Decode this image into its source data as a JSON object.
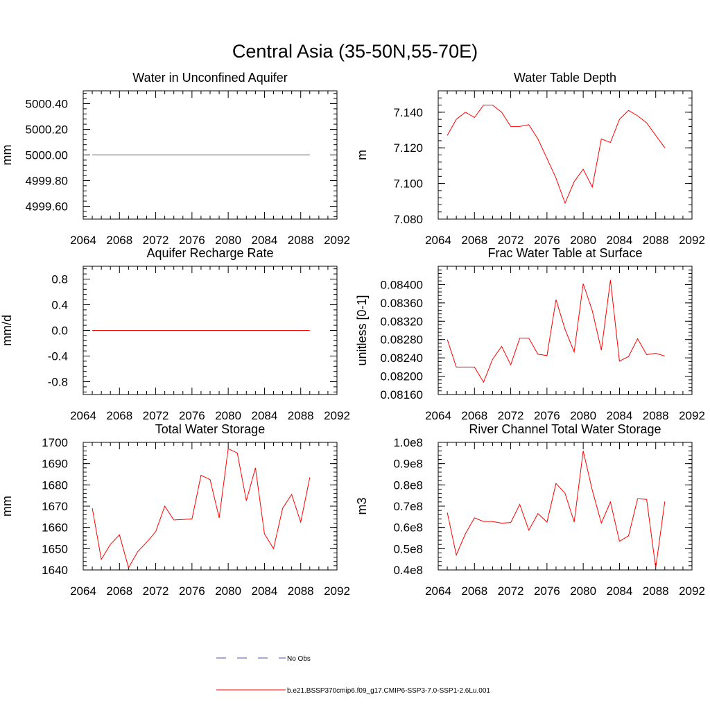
{
  "figure": {
    "title": "Central Asia (35-50N,55-70E)",
    "line_color": "#ff0000",
    "obs_color": "#5050b0"
  },
  "legend": {
    "obs_label": "No Obs",
    "model_label": "b.e21.BSSP370cmip6.f09_g17.CMIP6-SSP3-7.0-SSP1-2.6Lu.001"
  },
  "chart_data": [
    {
      "type": "line",
      "title": "Water in Unconfined Aquifer",
      "xlabel": "",
      "ylabel": "mm",
      "xlim": [
        2064,
        2092
      ],
      "ylim": [
        4999.5,
        5000.5
      ],
      "xticks": [
        2064,
        2068,
        2072,
        2076,
        2080,
        2084,
        2088,
        2092
      ],
      "yticks": [
        4999.6,
        4999.8,
        5000.0,
        5000.2,
        5000.4
      ],
      "ytick_labels": [
        "4999.60",
        "4999.80",
        "5000.00",
        "5000.20",
        "5000.40"
      ],
      "x": [
        2065,
        2066,
        2067,
        2068,
        2069,
        2070,
        2071,
        2072,
        2073,
        2074,
        2075,
        2076,
        2077,
        2078,
        2079,
        2080,
        2081,
        2082,
        2083,
        2084,
        2085,
        2086,
        2087,
        2088,
        2089
      ],
      "series": [
        {
          "values": [
            5000,
            5000,
            5000,
            5000,
            5000,
            5000,
            5000,
            5000,
            5000,
            5000,
            5000,
            5000,
            5000,
            5000,
            5000,
            5000,
            5000,
            5000,
            5000,
            5000,
            5000,
            5000,
            5000,
            5000,
            5000
          ]
        }
      ]
    },
    {
      "type": "line",
      "title": "Water Table Depth",
      "xlabel": "",
      "ylabel": "m",
      "xlim": [
        2064,
        2092
      ],
      "ylim": [
        7.08,
        7.152
      ],
      "xticks": [
        2064,
        2068,
        2072,
        2076,
        2080,
        2084,
        2088,
        2092
      ],
      "yticks": [
        7.08,
        7.1,
        7.12,
        7.14
      ],
      "ytick_labels": [
        "7.080",
        "7.100",
        "7.120",
        "7.140"
      ],
      "x": [
        2065,
        2066,
        2067,
        2068,
        2069,
        2070,
        2071,
        2072,
        2073,
        2074,
        2075,
        2076,
        2077,
        2078,
        2079,
        2080,
        2081,
        2082,
        2083,
        2084,
        2085,
        2086,
        2087,
        2088,
        2089
      ],
      "series": [
        {
          "values": [
            7.127,
            7.136,
            7.14,
            7.137,
            7.144,
            7.144,
            7.14,
            7.132,
            7.132,
            7.133,
            7.125,
            7.114,
            7.103,
            7.089,
            7.101,
            7.108,
            7.098,
            7.125,
            7.123,
            7.136,
            7.141,
            7.138,
            7.134,
            7.127,
            7.12
          ]
        }
      ]
    },
    {
      "type": "line",
      "title": "Aquifer Recharge Rate",
      "xlabel": "",
      "ylabel": "mm/d",
      "xlim": [
        2064,
        2092
      ],
      "ylim": [
        -1.0,
        1.0
      ],
      "xticks": [
        2064,
        2068,
        2072,
        2076,
        2080,
        2084,
        2088,
        2092
      ],
      "yticks": [
        -0.8,
        -0.4,
        0.0,
        0.4,
        0.8
      ],
      "ytick_labels": [
        "-0.8",
        "-0.4",
        "0.0",
        "0.4",
        "0.8"
      ],
      "x": [
        2065,
        2066,
        2067,
        2068,
        2069,
        2070,
        2071,
        2072,
        2073,
        2074,
        2075,
        2076,
        2077,
        2078,
        2079,
        2080,
        2081,
        2082,
        2083,
        2084,
        2085,
        2086,
        2087,
        2088,
        2089
      ],
      "series": [
        {
          "values": [
            0,
            0,
            0,
            0,
            0,
            0,
            0,
            0,
            0,
            0,
            0,
            0,
            0,
            0,
            0,
            0,
            0,
            0,
            0,
            0,
            0,
            0,
            0,
            0,
            0
          ]
        }
      ]
    },
    {
      "type": "line",
      "title": "Frac Water Table at Surface",
      "xlabel": "",
      "ylabel": "unitless [0-1]",
      "xlim": [
        2064,
        2092
      ],
      "ylim": [
        0.0816,
        0.0844
      ],
      "xticks": [
        2064,
        2068,
        2072,
        2076,
        2080,
        2084,
        2088,
        2092
      ],
      "yticks": [
        0.0816,
        0.082,
        0.0824,
        0.0828,
        0.0832,
        0.0836,
        0.084
      ],
      "ytick_labels": [
        "0.08160",
        "0.08200",
        "0.08240",
        "0.08280",
        "0.08320",
        "0.08360",
        "0.08400"
      ],
      "x": [
        2065,
        2066,
        2067,
        2068,
        2069,
        2070,
        2071,
        2072,
        2073,
        2074,
        2075,
        2076,
        2077,
        2078,
        2079,
        2080,
        2081,
        2082,
        2083,
        2084,
        2085,
        2086,
        2087,
        2088,
        2089
      ],
      "series": [
        {
          "values": [
            0.0828,
            0.0822,
            0.0822,
            0.0822,
            0.08187,
            0.08237,
            0.08265,
            0.08225,
            0.08283,
            0.08283,
            0.08248,
            0.08245,
            0.08367,
            0.08302,
            0.08253,
            0.08402,
            0.08343,
            0.08257,
            0.0841,
            0.08233,
            0.08243,
            0.08282,
            0.08247,
            0.0825,
            0.08244
          ]
        }
      ]
    },
    {
      "type": "line",
      "title": "Total Water Storage",
      "xlabel": "",
      "ylabel": "mm",
      "xlim": [
        2064,
        2092
      ],
      "ylim": [
        1640,
        1700
      ],
      "xticks": [
        2064,
        2068,
        2072,
        2076,
        2080,
        2084,
        2088,
        2092
      ],
      "yticks": [
        1640,
        1650,
        1660,
        1670,
        1680,
        1690,
        1700
      ],
      "ytick_labels": [
        "1640",
        "1650",
        "1660",
        "1670",
        "1680",
        "1690",
        "1700"
      ],
      "x": [
        2065,
        2066,
        2067,
        2068,
        2069,
        2070,
        2071,
        2072,
        2073,
        2074,
        2075,
        2076,
        2077,
        2078,
        2079,
        2080,
        2081,
        2082,
        2083,
        2084,
        2085,
        2086,
        2087,
        2088,
        2089
      ],
      "series": [
        {
          "values": [
            1669,
            1645,
            1652,
            1656.5,
            1641,
            1648.5,
            1653,
            1658,
            1670,
            1663.5,
            1663.7,
            1664,
            1684.5,
            1682.5,
            1664.5,
            1697,
            1695,
            1672.5,
            1688,
            1657,
            1650,
            1669,
            1675.5,
            1662.5,
            1683.5
          ]
        }
      ]
    },
    {
      "type": "line",
      "title": "River Channel Total Water Storage",
      "xlabel": "",
      "ylabel": "m3",
      "xlim": [
        2064,
        2092
      ],
      "ylim": [
        40000000,
        100000000
      ],
      "xticks": [
        2064,
        2068,
        2072,
        2076,
        2080,
        2084,
        2088,
        2092
      ],
      "yticks": [
        40000000,
        50000000,
        60000000,
        70000000,
        80000000,
        90000000,
        100000000
      ],
      "ytick_labels": [
        "0.4e8",
        "0.5e8",
        "0.6e8",
        "0.7e8",
        "0.8e8",
        "0.9e8",
        "1.0e8"
      ],
      "x": [
        2065,
        2066,
        2067,
        2068,
        2069,
        2070,
        2071,
        2072,
        2073,
        2074,
        2075,
        2076,
        2077,
        2078,
        2079,
        2080,
        2081,
        2082,
        2083,
        2084,
        2085,
        2086,
        2087,
        2088,
        2089
      ],
      "series": [
        {
          "values": [
            67000000,
            47000000,
            57000000,
            64500000,
            62800000,
            62800000,
            62000000,
            62300000,
            70800000,
            58700000,
            66500000,
            62500000,
            80700000,
            76000000,
            62500000,
            96000000,
            77500000,
            62000000,
            72000000,
            53500000,
            56000000,
            73500000,
            73200000,
            41000000,
            72200000
          ]
        }
      ]
    }
  ]
}
